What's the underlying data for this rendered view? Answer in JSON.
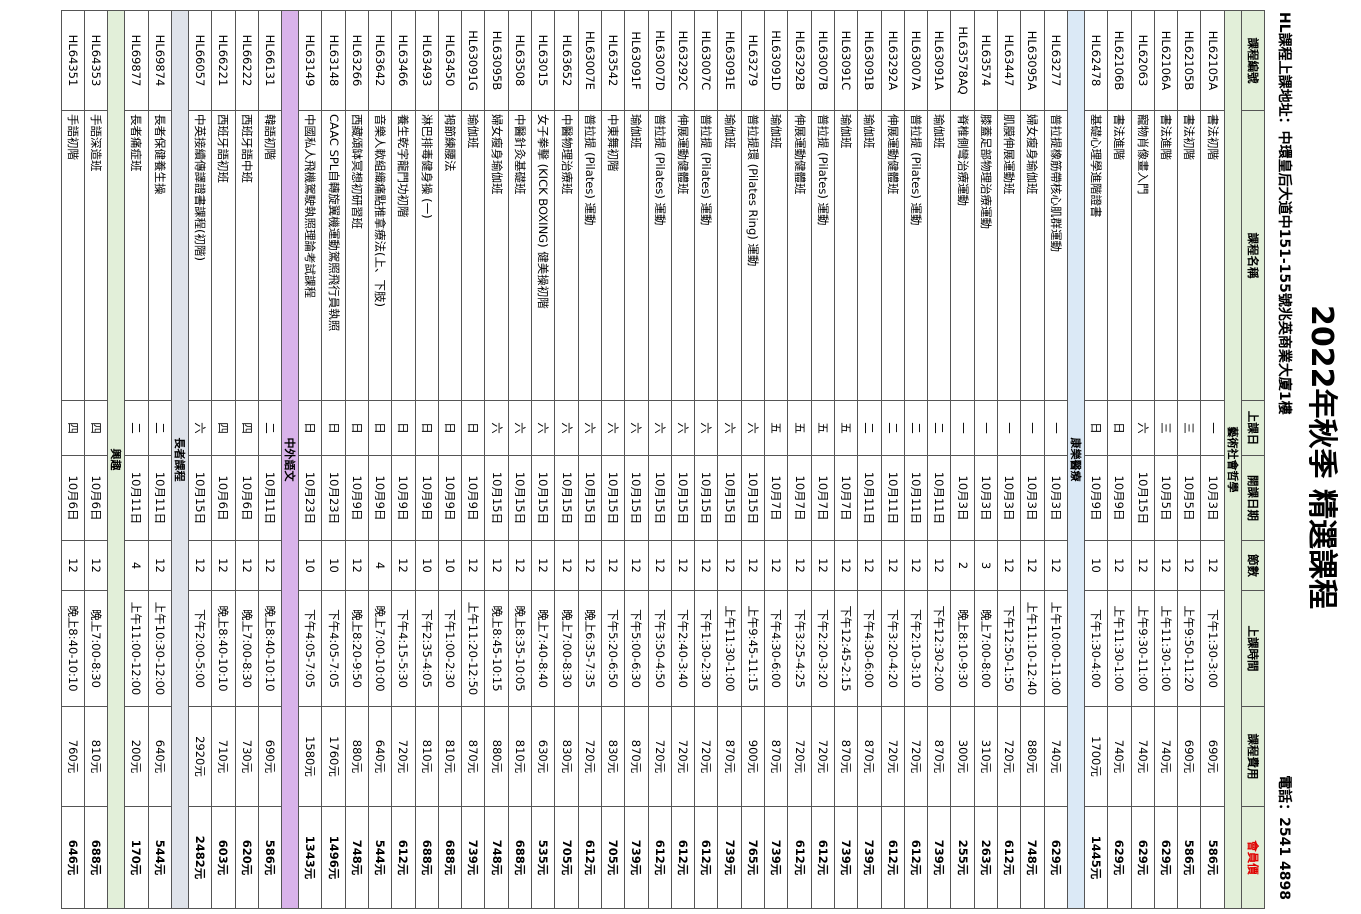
{
  "header": {
    "title": "2022年秋季 精選課程",
    "address": "HL課程上課地址：中環皇后大道中151-155號兆英商業大廈1樓",
    "phone": "電話：2541 4898"
  },
  "table": {
    "columns": [
      "課程編號",
      "課程名稱",
      "上課日",
      "開課日期",
      "節數",
      "上課時間",
      "課程費用",
      "會員價"
    ],
    "sections": [
      {
        "title": "藝術社會哲學",
        "rows": [
          [
            "HL62105A",
            "書法初階",
            "一",
            "10月3日",
            "12",
            "下午1:30-3:00",
            "690元",
            "586元"
          ],
          [
            "HL62105B",
            "書法初階",
            "三",
            "10月5日",
            "12",
            "上午9:50-11:20",
            "690元",
            "586元"
          ],
          [
            "HL62106A",
            "書法進階",
            "三",
            "10月5日",
            "12",
            "上午11:30-1:00",
            "740元",
            "629元"
          ],
          [
            "HL62063",
            "寵物肖像畫入門",
            "六",
            "10月15日",
            "12",
            "上午9:30-11:00",
            "740元",
            "629元"
          ],
          [
            "HL62106B",
            "書法進階",
            "日",
            "10月9日",
            "12",
            "上午11:30-1:00",
            "740元",
            "629元"
          ],
          [
            "HL62478",
            "基礎心理學進階證書",
            "日",
            "10月9日",
            "10",
            "下午1:30-4:00",
            "1700元",
            "1445元"
          ]
        ]
      },
      {
        "title": "康樂醫療",
        "rows": [
          [
            "HL63277",
            "普拉提橡筋帶核心肌群運動",
            "一",
            "10月3日",
            "12",
            "上午10:00-11:00",
            "740元",
            "629元"
          ],
          [
            "HL63095A",
            "婦女瘦身瑜伽班",
            "一",
            "10月3日",
            "12",
            "上午11:10-12:40",
            "880元",
            "748元"
          ],
          [
            "HL63447",
            "肌膜伸展運動班",
            "一",
            "10月3日",
            "12",
            "下午12:50-1:50",
            "720元",
            "612元"
          ],
          [
            "HL63574",
            "膝蓋足部物理治療運動",
            "一",
            "10月3日",
            "3",
            "晚上7:00-8:00",
            "310元",
            "263元"
          ],
          [
            "HL63578AQ",
            "脊椎側彎治療運動",
            "一",
            "10月3日",
            "2",
            "晚上8:10-9:30",
            "300元",
            "255元"
          ],
          [
            "HL63091A",
            "瑜伽班",
            "二",
            "10月11日",
            "12",
            "下午12:30-2:00",
            "870元",
            "739元"
          ],
          [
            "HL63007A",
            "普拉提 (Pilates) 運動",
            "二",
            "10月11日",
            "12",
            "下午2:10-3:10",
            "720元",
            "612元"
          ],
          [
            "HL63292A",
            "伸展運動健體班",
            "二",
            "10月11日",
            "12",
            "下午3:20-4:20",
            "720元",
            "612元"
          ],
          [
            "HL63091B",
            "瑜伽班",
            "二",
            "10月11日",
            "12",
            "下午4:30-6:00",
            "870元",
            "739元"
          ],
          [
            "HL63091C",
            "瑜伽班",
            "五",
            "10月7日",
            "12",
            "下午12:45-2:15",
            "870元",
            "739元"
          ],
          [
            "HL63007B",
            "普拉提 (Pilates) 運動",
            "五",
            "10月7日",
            "12",
            "下午2:20-3:20",
            "720元",
            "612元"
          ],
          [
            "HL63292B",
            "伸展運動健體班",
            "五",
            "10月7日",
            "12",
            "下午3:25-4:25",
            "720元",
            "612元"
          ],
          [
            "HL63091D",
            "瑜伽班",
            "五",
            "10月7日",
            "12",
            "下午4:30-6:00",
            "870元",
            "739元"
          ],
          [
            "HL63279",
            "普拉提環 (Pilates Ring) 運動",
            "六",
            "10月15日",
            "12",
            "上午9:45-11:15",
            "900元",
            "765元"
          ],
          [
            "HL63091E",
            "瑜伽班",
            "六",
            "10月15日",
            "12",
            "上午11:30-1:00",
            "870元",
            "739元"
          ],
          [
            "HL63007C",
            "普拉提 (Pilates) 運動",
            "六",
            "10月15日",
            "12",
            "下午1:30-2:30",
            "720元",
            "612元"
          ],
          [
            "HL63292C",
            "伸展運動健體班",
            "六",
            "10月15日",
            "12",
            "下午2:40-3:40",
            "720元",
            "612元"
          ],
          [
            "HL63007D",
            "普拉提 (Pilates) 運動",
            "六",
            "10月15日",
            "12",
            "下午3:50-4:50",
            "720元",
            "612元"
          ],
          [
            "HL63091F",
            "瑜伽班",
            "六",
            "10月15日",
            "12",
            "下午5:00-6:30",
            "870元",
            "739元"
          ],
          [
            "HL63542",
            "中東舞初階",
            "六",
            "10月15日",
            "12",
            "下午5:20-6:50",
            "830元",
            "705元"
          ],
          [
            "HL63007E",
            "普拉提 (Pilates) 運動",
            "六",
            "10月15日",
            "12",
            "晚上6:35-7:35",
            "720元",
            "612元"
          ],
          [
            "HL63652",
            "中醫物理治療班",
            "六",
            "10月15日",
            "12",
            "晚上7:00-8:30",
            "830元",
            "705元"
          ],
          [
            "HL63015",
            "女子拳擊 (KICK BOXING) 健美操初階",
            "六",
            "10月15日",
            "12",
            "晚上7:40-8:40",
            "630元",
            "535元"
          ],
          [
            "HL63508",
            "中醫針灸基礎班",
            "六",
            "10月15日",
            "12",
            "晚上8:35-10:05",
            "810元",
            "688元"
          ],
          [
            "HL63095B",
            "婦女瘦身瑜伽班",
            "六",
            "10月15日",
            "12",
            "晚上8:45-10:15",
            "880元",
            "748元"
          ],
          [
            "HL63091G",
            "瑜伽班",
            "日",
            "10月9日",
            "12",
            "上午11:20-12:50",
            "870元",
            "739元"
          ],
          [
            "HL63450",
            "拇節練腰法",
            "日",
            "10月9日",
            "10",
            "下午1:00-2:30",
            "810元",
            "688元"
          ],
          [
            "HL63493",
            "淋巴排毒健身操 (一)",
            "日",
            "10月9日",
            "10",
            "下午2:35-4:05",
            "810元",
            "688元"
          ],
          [
            "HL63466",
            "養生乾字龍門功初階",
            "日",
            "10月9日",
            "12",
            "下午4:15-5:30",
            "720元",
            "612元"
          ],
          [
            "HL63642",
            "音樂人軟組織痛點推拿療法(上、下肢)",
            "日",
            "10月9日",
            "4",
            "晚上7:00-10:00",
            "640元",
            "544元"
          ],
          [
            "HL63266",
            "西藏頌缽冥想初研習班",
            "日",
            "10月9日",
            "12",
            "晚上8:20-9:50",
            "880元",
            "748元"
          ],
          [
            "HL63148",
            "CAAC SPL自轉旋翼機運動駕照飛行員執照",
            "日",
            "10月23日",
            "10",
            "下午4:05-7:05",
            "1760元",
            "1496元"
          ],
          [
            "HL63149",
            "中國私人飛機駕駛執照理論考試課程",
            "日",
            "10月23日",
            "10",
            "下午4:05-7:05",
            "1580元",
            "1343元"
          ]
        ]
      },
      {
        "title": "中外語文",
        "rows": [
          [
            "HL66131",
            "韓語初階",
            "二",
            "10月11日",
            "12",
            "晚上8:40-10:10",
            "690元",
            "586元"
          ],
          [
            "HL66222",
            "西班牙語中班",
            "四",
            "10月6日",
            "12",
            "晚上7:00-8:30",
            "730元",
            "620元"
          ],
          [
            "HL66221",
            "西班牙語初班",
            "四",
            "10月6日",
            "12",
            "晚上8:40-10:10",
            "710元",
            "603元"
          ],
          [
            "HL66057",
            "中英接續傳譯證書課程(初階)",
            "六",
            "10月15日",
            "12",
            "下午2:00-5:00",
            "2920元",
            "2482元"
          ]
        ]
      },
      {
        "title": "長者課程",
        "rows": [
          [
            "HL69874",
            "長者保健養生操",
            "二",
            "10月11日",
            "12",
            "上午10:30-12:00",
            "640元",
            "544元"
          ],
          [
            "HL69877",
            "長者痛症班",
            "二",
            "10月11日",
            "4",
            "上午11:00-12:00",
            "200元",
            "170元"
          ]
        ]
      },
      {
        "title": "興趣",
        "rows": [
          [
            "HL64353",
            "手語深造班",
            "四",
            "10月6日",
            "12",
            "晚上7:00-8:30",
            "810元",
            "688元"
          ],
          [
            "HL64351",
            "手語初階",
            "四",
            "10月6日",
            "12",
            "晚上8:40-10:10",
            "760元",
            "646元"
          ]
        ]
      }
    ]
  }
}
